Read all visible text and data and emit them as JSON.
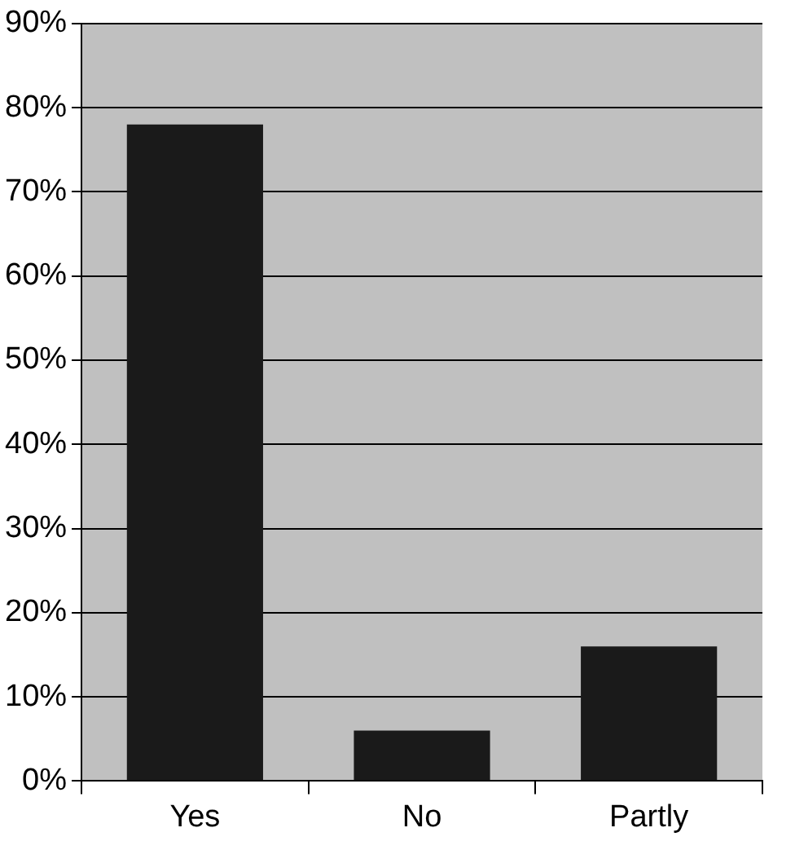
{
  "chart_data": {
    "type": "bar",
    "categories": [
      "Yes",
      "No",
      "Partly"
    ],
    "values": [
      78,
      6,
      16
    ],
    "color": "#1a1a1a",
    "ylim": [
      0,
      90
    ],
    "yticks": [
      {
        "value": 0,
        "label": "0%"
      },
      {
        "value": 10,
        "label": "10%"
      },
      {
        "value": 20,
        "label": "20%"
      },
      {
        "value": 30,
        "label": "30%"
      },
      {
        "value": 40,
        "label": "40%"
      },
      {
        "value": 50,
        "label": "50%"
      },
      {
        "value": 60,
        "label": "60%"
      },
      {
        "value": 70,
        "label": "70%"
      },
      {
        "value": 80,
        "label": "80%"
      },
      {
        "value": 90,
        "label": "90%"
      }
    ],
    "grid": "y"
  }
}
